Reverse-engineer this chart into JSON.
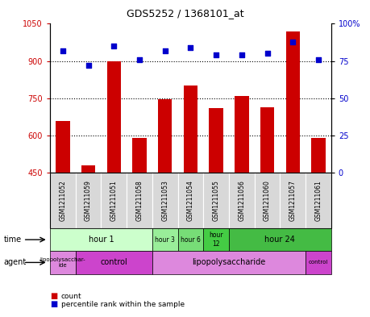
{
  "title": "GDS5252 / 1368101_at",
  "samples": [
    "GSM1211052",
    "GSM1211059",
    "GSM1211051",
    "GSM1211058",
    "GSM1211053",
    "GSM1211054",
    "GSM1211055",
    "GSM1211056",
    "GSM1211060",
    "GSM1211057",
    "GSM1211061"
  ],
  "counts": [
    660,
    480,
    900,
    590,
    745,
    800,
    710,
    760,
    715,
    1020,
    590
  ],
  "percentiles": [
    82,
    72,
    85,
    76,
    82,
    84,
    79,
    79,
    80,
    88,
    76
  ],
  "ylim_left": [
    450,
    1050
  ],
  "ylim_right": [
    0,
    100
  ],
  "yticks_left": [
    450,
    600,
    750,
    900,
    1050
  ],
  "yticks_right": [
    0,
    25,
    50,
    75,
    100
  ],
  "bar_color": "#cc0000",
  "dot_color": "#0000cc",
  "bar_bottom": 450,
  "time_groups": [
    {
      "label": "hour 1",
      "cols": [
        0,
        1,
        2,
        3
      ],
      "color": "#ccffcc"
    },
    {
      "label": "hour 3",
      "cols": [
        4
      ],
      "color": "#99ee99"
    },
    {
      "label": "hour 6",
      "cols": [
        5
      ],
      "color": "#77dd77"
    },
    {
      "label": "hour\n12",
      "cols": [
        6
      ],
      "color": "#44cc44"
    },
    {
      "label": "hour 24",
      "cols": [
        7,
        8,
        9,
        10
      ],
      "color": "#44bb44"
    }
  ],
  "agent_groups": [
    {
      "label": "lipopolysacchar-\nide",
      "cols": [
        0
      ],
      "color": "#dd88dd"
    },
    {
      "label": "control",
      "cols": [
        1,
        2,
        3
      ],
      "color": "#cc44cc"
    },
    {
      "label": "lipopolysaccharide",
      "cols": [
        4,
        5,
        6,
        7,
        8,
        9
      ],
      "color": "#dd88dd"
    },
    {
      "label": "control",
      "cols": [
        10
      ],
      "color": "#cc44cc"
    }
  ],
  "tick_label_color_left": "#cc0000",
  "tick_label_color_right": "#0000cc",
  "plot_bg": "#ffffff",
  "tick_bg": "#d8d8d8"
}
